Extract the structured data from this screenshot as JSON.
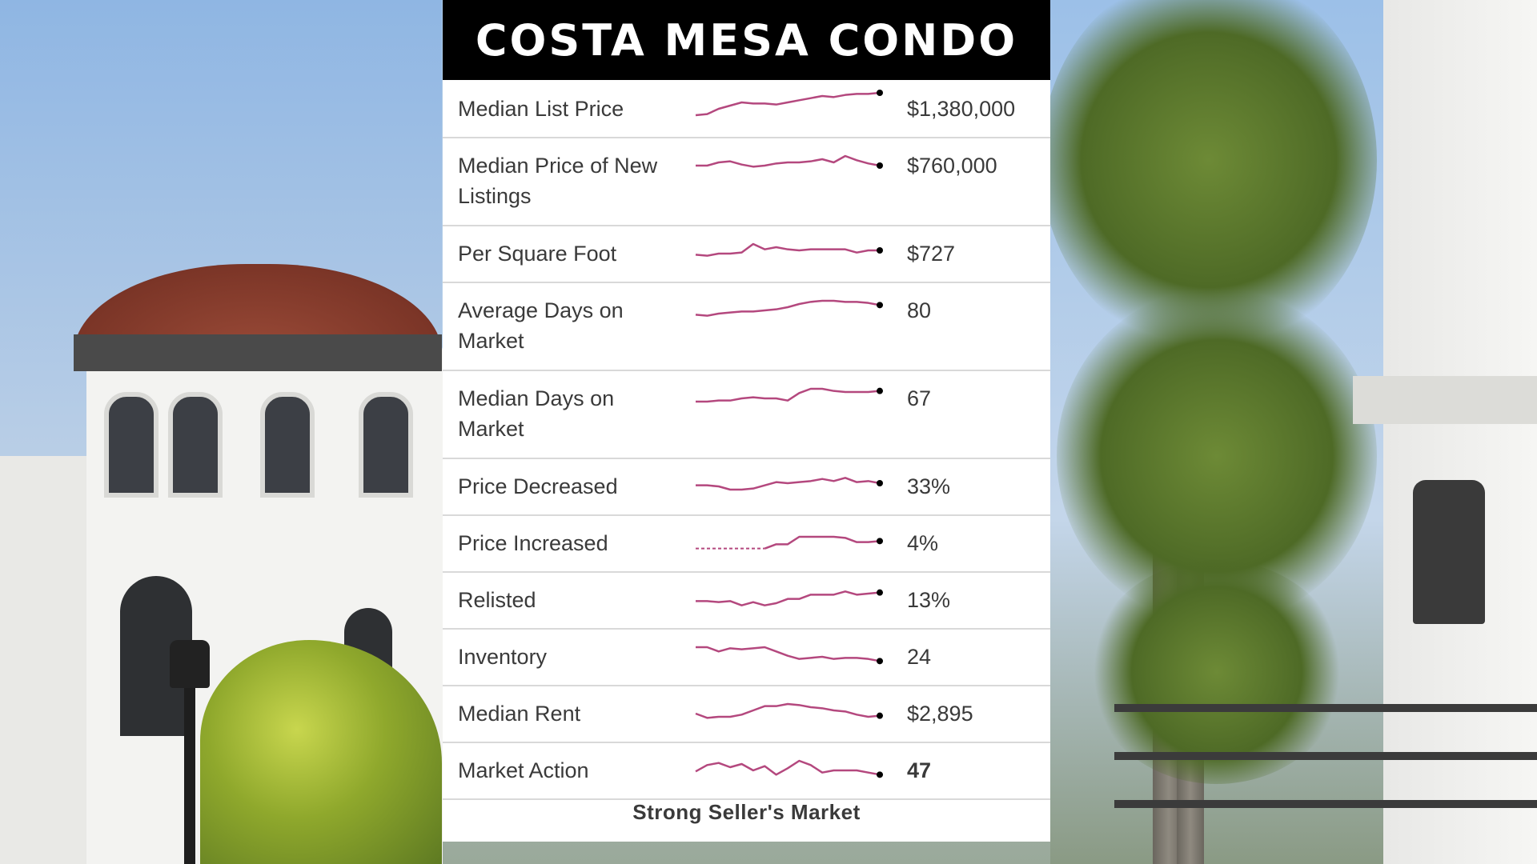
{
  "card": {
    "title": "COSTA MESA CONDO",
    "footer": "Strong Seller's Market"
  },
  "colors": {
    "sparkline": "#b4487e",
    "endpoint": "#000000",
    "header_bg": "#000000"
  },
  "chart_data": {
    "type": "line",
    "title": "COSTA MESA CONDO",
    "rows": [
      {
        "label": "Median List Price",
        "value": "$1,380,000",
        "bold": false,
        "dashed_start": 0,
        "series": [
          3,
          4,
          9,
          12,
          15,
          14,
          14,
          13,
          15,
          17,
          19,
          21,
          20,
          22,
          23,
          23,
          24
        ]
      },
      {
        "label": "Median Price of New Listings",
        "value": "$760,000",
        "bold": false,
        "dashed_start": 0,
        "series": [
          9,
          9,
          12,
          13,
          10,
          8,
          9,
          11,
          12,
          12,
          13,
          15,
          12,
          18,
          14,
          11,
          9
        ]
      },
      {
        "label": "Per Square Foot",
        "value": "$727",
        "bold": false,
        "dashed_start": 0,
        "series": [
          8,
          7,
          9,
          9,
          10,
          18,
          13,
          15,
          13,
          12,
          13,
          13,
          13,
          13,
          10,
          12,
          12
        ]
      },
      {
        "label": "Average Days on Market",
        "value": "80",
        "bold": false,
        "dashed_start": 0,
        "series": [
          5,
          4,
          6,
          7,
          8,
          8,
          9,
          10,
          12,
          15,
          17,
          18,
          18,
          17,
          17,
          16,
          14
        ]
      },
      {
        "label": "Median Days on Market",
        "value": "67",
        "bold": false,
        "dashed_start": 0,
        "series": [
          6,
          6,
          7,
          7,
          9,
          10,
          9,
          9,
          7,
          14,
          18,
          18,
          16,
          15,
          15,
          15,
          16
        ]
      },
      {
        "label": "Price Decreased",
        "value": "33%",
        "bold": false,
        "dashed_start": 0,
        "series": [
          10,
          10,
          9,
          6,
          6,
          7,
          10,
          13,
          12,
          13,
          14,
          16,
          14,
          17,
          13,
          14,
          12
        ]
      },
      {
        "label": "Price Increased",
        "value": "4%",
        "bold": false,
        "dashed_start": 6,
        "series": [
          4,
          4,
          4,
          4,
          4,
          4,
          4,
          8,
          8,
          15,
          15,
          15,
          15,
          14,
          10,
          10,
          11
        ]
      },
      {
        "label": "Relisted",
        "value": "13%",
        "bold": false,
        "dashed_start": 0,
        "series": [
          8,
          8,
          7,
          8,
          4,
          7,
          4,
          6,
          10,
          10,
          14,
          14,
          14,
          17,
          14,
          15,
          16
        ]
      },
      {
        "label": "Inventory",
        "value": "24",
        "bold": false,
        "dashed_start": 0,
        "series": [
          18,
          18,
          14,
          17,
          16,
          17,
          18,
          14,
          10,
          7,
          8,
          9,
          7,
          8,
          8,
          7,
          5
        ]
      },
      {
        "label": "Median Rent",
        "value": "$2,895",
        "bold": false,
        "dashed_start": 0,
        "series": [
          9,
          5,
          6,
          6,
          8,
          12,
          16,
          16,
          18,
          17,
          15,
          14,
          12,
          11,
          8,
          6,
          7
        ]
      },
      {
        "label": "Market Action",
        "value": "47",
        "bold": true,
        "dashed_start": 0,
        "series": [
          8,
          14,
          16,
          12,
          15,
          9,
          13,
          5,
          11,
          18,
          14,
          7,
          9,
          9,
          9,
          7,
          5
        ]
      }
    ]
  }
}
